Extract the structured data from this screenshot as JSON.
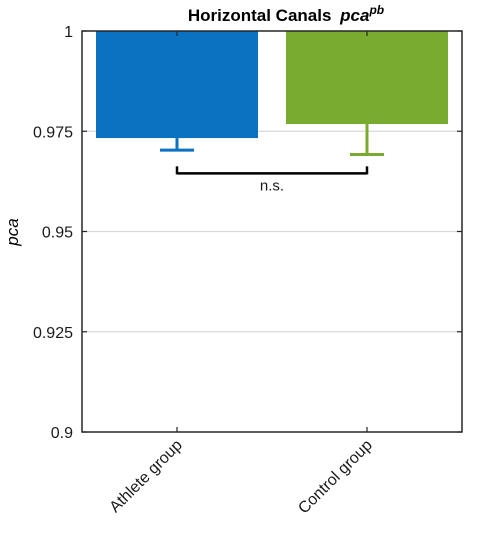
{
  "chart_data": {
    "type": "bar",
    "title": "Horizontal Canals",
    "title_italic": "pca",
    "title_superscript": "pb",
    "xlabel": "",
    "ylabel": "pca",
    "categories": [
      "Athlete group",
      "Control group"
    ],
    "values": [
      0.9733,
      0.9768
    ],
    "error_lower": [
      0.9703,
      0.9692
    ],
    "ylim": [
      0.9,
      1.0
    ],
    "yticks": [
      "0.9",
      "0.925",
      "0.95",
      "0.975",
      "1"
    ],
    "ytick_values": [
      0.9,
      0.925,
      0.95,
      0.975,
      1.0
    ],
    "grid": true,
    "colors": [
      "#0a72c1",
      "#78ab30"
    ],
    "annotation": {
      "text": "n.s.",
      "bracket_y": 0.9645
    }
  }
}
